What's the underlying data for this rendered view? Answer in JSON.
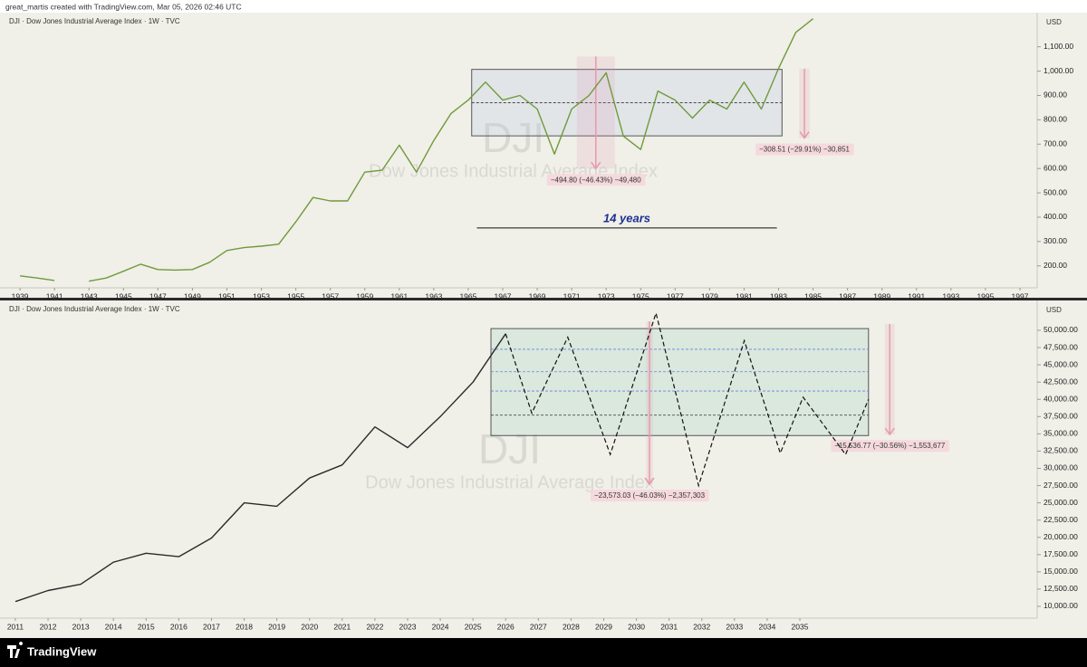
{
  "header": {
    "text": "great_martis created with TradingView.com, Mar 05, 2026 02:46 UTC"
  },
  "chart_data": [
    {
      "type": "line",
      "legend": "DJI · Dow Jones Industrial Average Index · 1W · TVC",
      "currency": "USD",
      "watermark": "DJI",
      "watermark_subtitle": "Dow Jones Industrial Average Index",
      "color": "#6f9a3a",
      "x": [
        1939,
        1940,
        1941,
        1942,
        1943,
        1944,
        1945,
        1946,
        1947,
        1948,
        1949,
        1950,
        1951,
        1952,
        1953,
        1954,
        1955,
        1956,
        1957,
        1958,
        1959,
        1960,
        1961,
        1962,
        1963,
        1964,
        1965,
        1966,
        1967,
        1968,
        1969,
        1970,
        1971,
        1972,
        1973,
        1974,
        1975,
        1976,
        1977,
        1978,
        1979,
        1980,
        1981,
        1982,
        1983,
        1984,
        1985
      ],
      "values": [
        159,
        150,
        140,
        null,
        137,
        150,
        178,
        207,
        185,
        183,
        185,
        215,
        263,
        275,
        281,
        289,
        381,
        481,
        467,
        467,
        585,
        593,
        696,
        585,
        715,
        826,
        881,
        955,
        881,
        900,
        844,
        659,
        844,
        900,
        993,
        733,
        678,
        918,
        881,
        807,
        881,
        844,
        955,
        844,
        1011,
        1159,
        1215
      ],
      "xlim": [
        1938.26,
        1998.0
      ],
      "ylim": [
        110,
        1240
      ],
      "xticks": [
        1939,
        1941,
        1943,
        1945,
        1947,
        1949,
        1951,
        1953,
        1955,
        1957,
        1959,
        1961,
        1963,
        1965,
        1967,
        1969,
        1971,
        1973,
        1975,
        1977,
        1979,
        1981,
        1983,
        1985,
        1987,
        1989,
        1991,
        1993,
        1995,
        1997
      ],
      "yticks": [
        {
          "value": 200,
          "label": "200.00"
        },
        {
          "value": 300,
          "label": "300.00"
        },
        {
          "value": 400,
          "label": "400.00"
        },
        {
          "value": 500,
          "label": "500.00"
        },
        {
          "value": 600,
          "label": "600.00"
        },
        {
          "value": 700,
          "label": "700.00"
        },
        {
          "value": 800,
          "label": "800.00"
        },
        {
          "value": 900,
          "label": "900.00"
        },
        {
          "value": 1000,
          "label": "1,000.00"
        },
        {
          "value": 1100,
          "label": "1,100.00"
        }
      ],
      "range_box": {
        "x": [
          1965.2,
          1983.2
        ],
        "y": [
          734,
          1007
        ],
        "mid": 870
      },
      "arrows": [
        {
          "x": [
            1971.3,
            1973.5
          ],
          "top": 1060,
          "bottom": 600,
          "label": "−494.80 (−46.43%) −49,480"
        },
        {
          "x": [
            1984.2,
            1984.8
          ],
          "top": 1010,
          "bottom": 725,
          "label": "−308.51 (−29.91%) −30,851"
        }
      ],
      "span": {
        "x": [
          1965.5,
          1982.9
        ],
        "y": 356,
        "label": "14 years"
      }
    },
    {
      "type": "line",
      "legend": "DJI · Dow Jones Industrial Average Index · 1W · TVC",
      "currency": "USD",
      "watermark": "DJI",
      "watermark_subtitle": "Dow Jones Industrial Average Index",
      "color": "#2a2a2a",
      "x": [
        2011,
        2012,
        2013,
        2014,
        2015,
        2016,
        2017,
        2018,
        2019,
        2020,
        2021,
        2022,
        2023,
        2024,
        2025,
        2026
      ],
      "values": [
        10700,
        12300,
        13200,
        16400,
        17700,
        17200,
        19900,
        25000,
        24500,
        28600,
        30500,
        36000,
        33000,
        37500,
        42500,
        49500
      ],
      "projection": {
        "x": [
          2026,
          2026.8,
          2027.9,
          2029.2,
          2030.6,
          2031.9,
          2033.3,
          2034.4,
          2035.1,
          2036.4,
          2037.1
        ],
        "values": [
          49500,
          38000,
          49000,
          32000,
          52500,
          27500,
          48500,
          32200,
          40300,
          32000,
          40000
        ]
      },
      "xlim": [
        2010.53,
        2042.26
      ],
      "ylim": [
        6065,
        53670
      ],
      "xticks": [
        2011,
        2012,
        2013,
        2014,
        2015,
        2016,
        2017,
        2018,
        2019,
        2020,
        2021,
        2022,
        2023,
        2024,
        2025,
        2026,
        2027,
        2028,
        2029,
        2030,
        2031,
        2032,
        2033,
        2034,
        2035
      ],
      "yticks": [
        {
          "value": 10000,
          "label": "10,000.00"
        },
        {
          "value": 12500,
          "label": "12,500.00"
        },
        {
          "value": 15000,
          "label": "15,000.00"
        },
        {
          "value": 17500,
          "label": "17,500.00"
        },
        {
          "value": 20000,
          "label": "20,000.00"
        },
        {
          "value": 22500,
          "label": "22,500.00"
        },
        {
          "value": 25000,
          "label": "25,000.00"
        },
        {
          "value": 27500,
          "label": "27,500.00"
        },
        {
          "value": 30000,
          "label": "30,000.00"
        },
        {
          "value": 32500,
          "label": "32,500.00"
        },
        {
          "value": 35000,
          "label": "35,000.00"
        },
        {
          "value": 37500,
          "label": "37,500.00"
        },
        {
          "value": 40000,
          "label": "40,000.00"
        },
        {
          "value": 42500,
          "label": "42,500.00"
        },
        {
          "value": 45000,
          "label": "45,000.00"
        },
        {
          "value": 47500,
          "label": "47,500.00"
        },
        {
          "value": 50000,
          "label": "50,000.00"
        }
      ],
      "range_box": {
        "x": [
          2025.55,
          2037.1
        ],
        "y": [
          34750,
          50250
        ],
        "mid": 37700,
        "levels": [
          41200,
          44000,
          47250
        ]
      },
      "arrows": [
        {
          "x": [
            2030.3,
            2030.5
          ],
          "top": 51300,
          "bottom": 27700,
          "label": "−23,573.03 (−46.03%) −2,357,303"
        },
        {
          "x": [
            2037.6,
            2037.9
          ],
          "top": 50900,
          "bottom": 34900,
          "label": "−15,536.77 (−30.56%) −1,553,677"
        }
      ]
    }
  ],
  "footer": {
    "brand": "TradingView"
  }
}
